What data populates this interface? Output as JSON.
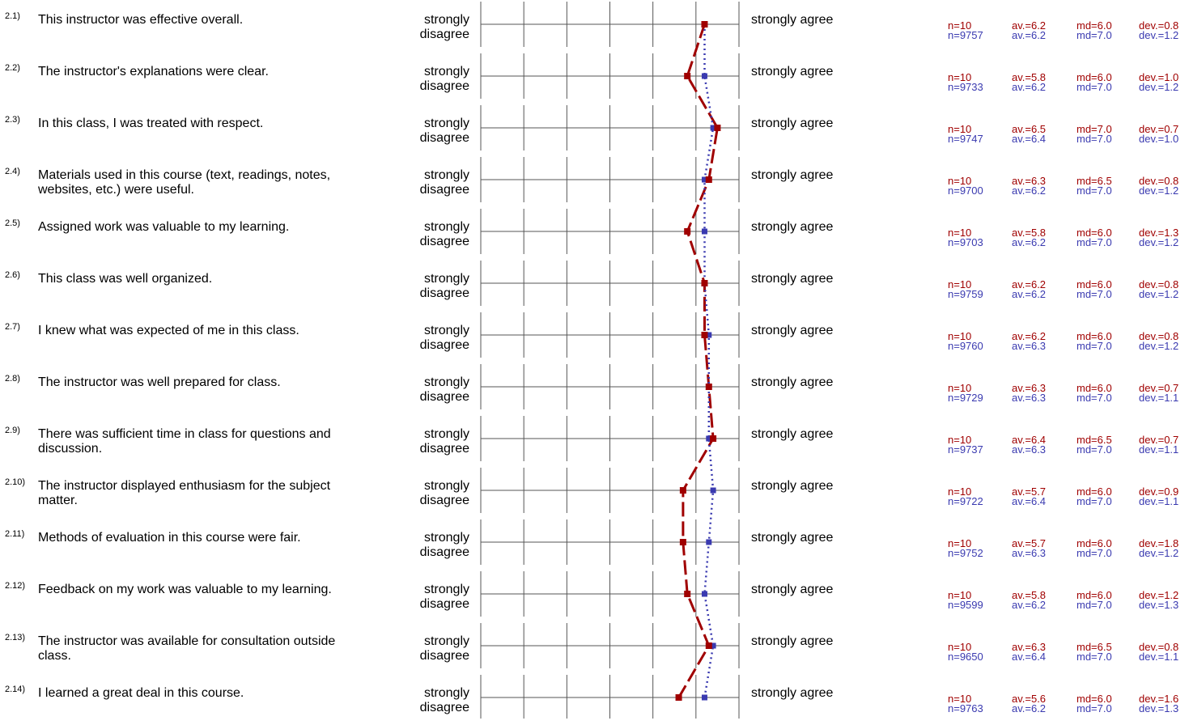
{
  "scale": {
    "left": "strongly disagree",
    "left_line1": "strongly",
    "left_line2": "disagree",
    "right": "strongly agree"
  },
  "colors": {
    "course": "#a00000",
    "comparison": "#3a3ab0",
    "grid": "#555555"
  },
  "rows": [
    {
      "num": "2.1)",
      "question": "This instructor was effective overall.",
      "red": {
        "n": "n=10",
        "av": "av.=6.2",
        "md": "md=6.0",
        "dev": "dev.=0.8"
      },
      "blue": {
        "n": "n=9757",
        "av": "av.=6.2",
        "md": "md=7.0",
        "dev": "dev.=1.2"
      }
    },
    {
      "num": "2.2)",
      "question": "The instructor's explanations were clear.",
      "red": {
        "n": "n=10",
        "av": "av.=5.8",
        "md": "md=6.0",
        "dev": "dev.=1.0"
      },
      "blue": {
        "n": "n=9733",
        "av": "av.=6.2",
        "md": "md=7.0",
        "dev": "dev.=1.2"
      }
    },
    {
      "num": "2.3)",
      "question": "In this class, I was treated with respect.",
      "red": {
        "n": "n=10",
        "av": "av.=6.5",
        "md": "md=7.0",
        "dev": "dev.=0.7"
      },
      "blue": {
        "n": "n=9747",
        "av": "av.=6.4",
        "md": "md=7.0",
        "dev": "dev.=1.0"
      }
    },
    {
      "num": "2.4)",
      "question": "Materials used in this course (text, readings, notes, websites, etc.) were useful.",
      "red": {
        "n": "n=10",
        "av": "av.=6.3",
        "md": "md=6.5",
        "dev": "dev.=0.8"
      },
      "blue": {
        "n": "n=9700",
        "av": "av.=6.2",
        "md": "md=7.0",
        "dev": "dev.=1.2"
      }
    },
    {
      "num": "2.5)",
      "question": "Assigned work was valuable to my learning.",
      "red": {
        "n": "n=10",
        "av": "av.=5.8",
        "md": "md=6.0",
        "dev": "dev.=1.3"
      },
      "blue": {
        "n": "n=9703",
        "av": "av.=6.2",
        "md": "md=7.0",
        "dev": "dev.=1.2"
      }
    },
    {
      "num": "2.6)",
      "question": "This class was well organized.",
      "red": {
        "n": "n=10",
        "av": "av.=6.2",
        "md": "md=6.0",
        "dev": "dev.=0.8"
      },
      "blue": {
        "n": "n=9759",
        "av": "av.=6.2",
        "md": "md=7.0",
        "dev": "dev.=1.2"
      }
    },
    {
      "num": "2.7)",
      "question": "I knew what was expected of me in this class.",
      "red": {
        "n": "n=10",
        "av": "av.=6.2",
        "md": "md=6.0",
        "dev": "dev.=0.8"
      },
      "blue": {
        "n": "n=9760",
        "av": "av.=6.3",
        "md": "md=7.0",
        "dev": "dev.=1.2"
      }
    },
    {
      "num": "2.8)",
      "question": "The instructor was well prepared for class.",
      "red": {
        "n": "n=10",
        "av": "av.=6.3",
        "md": "md=6.0",
        "dev": "dev.=0.7"
      },
      "blue": {
        "n": "n=9729",
        "av": "av.=6.3",
        "md": "md=7.0",
        "dev": "dev.=1.1"
      }
    },
    {
      "num": "2.9)",
      "question": "There was sufficient time in class for questions and discussion.",
      "red": {
        "n": "n=10",
        "av": "av.=6.4",
        "md": "md=6.5",
        "dev": "dev.=0.7"
      },
      "blue": {
        "n": "n=9737",
        "av": "av.=6.3",
        "md": "md=7.0",
        "dev": "dev.=1.1"
      }
    },
    {
      "num": "2.10)",
      "question": "The instructor displayed enthusiasm for the subject matter.",
      "red": {
        "n": "n=10",
        "av": "av.=5.7",
        "md": "md=6.0",
        "dev": "dev.=0.9"
      },
      "blue": {
        "n": "n=9722",
        "av": "av.=6.4",
        "md": "md=7.0",
        "dev": "dev.=1.1"
      }
    },
    {
      "num": "2.11)",
      "question": "Methods of evaluation in this course were fair.",
      "red": {
        "n": "n=10",
        "av": "av.=5.7",
        "md": "md=6.0",
        "dev": "dev.=1.8"
      },
      "blue": {
        "n": "n=9752",
        "av": "av.=6.3",
        "md": "md=7.0",
        "dev": "dev.=1.2"
      }
    },
    {
      "num": "2.12)",
      "question": "Feedback on my work was valuable to my learning.",
      "red": {
        "n": "n=10",
        "av": "av.=5.8",
        "md": "md=6.0",
        "dev": "dev.=1.2"
      },
      "blue": {
        "n": "n=9599",
        "av": "av.=6.2",
        "md": "md=7.0",
        "dev": "dev.=1.3"
      }
    },
    {
      "num": "2.13)",
      "question": "The instructor was available for consultation outside class.",
      "red": {
        "n": "n=10",
        "av": "av.=6.3",
        "md": "md=6.5",
        "dev": "dev.=0.8"
      },
      "blue": {
        "n": "n=9650",
        "av": "av.=6.4",
        "md": "md=7.0",
        "dev": "dev.=1.1"
      }
    },
    {
      "num": "2.14)",
      "question": "I learned a great deal in this course.",
      "red": {
        "n": "n=10",
        "av": "av.=5.6",
        "md": "md=6.0",
        "dev": "dev.=1.6"
      },
      "blue": {
        "n": "n=9763",
        "av": "av.=6.2",
        "md": "md=7.0",
        "dev": "dev.=1.3"
      }
    }
  ],
  "chart_data": {
    "type": "line",
    "scale_min": 1,
    "scale_max": 7,
    "categories": [
      "2.1)",
      "2.2)",
      "2.3)",
      "2.4)",
      "2.5)",
      "2.6)",
      "2.7)",
      "2.8)",
      "2.9)",
      "2.10)",
      "2.11)",
      "2.12)",
      "2.13)",
      "2.14)"
    ],
    "series": [
      {
        "values": [
          6.2,
          5.8,
          6.5,
          6.3,
          5.8,
          6.2,
          6.2,
          6.3,
          6.4,
          5.7,
          5.7,
          5.8,
          6.3,
          5.6
        ],
        "color": "#a00000",
        "style": "dashed"
      },
      {
        "values": [
          6.2,
          6.2,
          6.4,
          6.2,
          6.2,
          6.2,
          6.3,
          6.3,
          6.3,
          6.4,
          6.3,
          6.2,
          6.4,
          6.2
        ],
        "color": "#3a3ab0",
        "style": "dotted"
      }
    ]
  }
}
